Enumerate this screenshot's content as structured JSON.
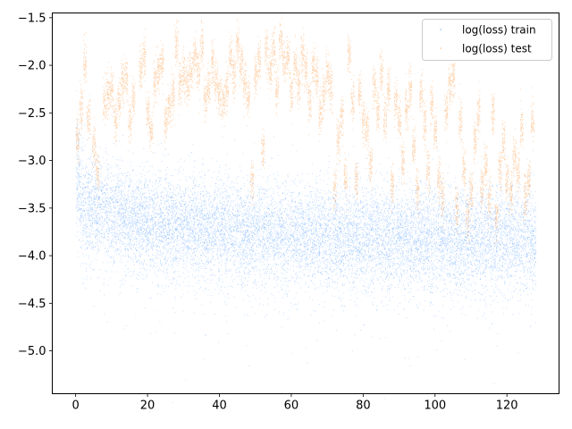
{
  "chart_data": {
    "type": "scatter",
    "title": "",
    "xlabel": "",
    "ylabel": "",
    "xlim": [
      -6.5,
      134.5
    ],
    "ylim": [
      -5.45,
      -1.45
    ],
    "xticks": [
      0,
      20,
      40,
      60,
      80,
      100,
      120
    ],
    "yticks": [
      -5.0,
      -4.5,
      -4.0,
      -3.5,
      -3.0,
      -2.5,
      -2.0,
      -1.5
    ],
    "xtick_labels": [
      "0",
      "20",
      "40",
      "60",
      "80",
      "100",
      "120"
    ],
    "ytick_labels": [
      "−5.0",
      "−4.5",
      "−4.0",
      "−3.5",
      "−3.0",
      "−2.5",
      "−2.0",
      "−1.5"
    ],
    "grid": false,
    "legend_position": "upper-right",
    "series": [
      {
        "name": "log(loss) train",
        "color": "#1f7fff",
        "x_range": [
          0,
          128
        ],
        "trend": [
          {
            "x": 0,
            "y": -3.1
          },
          {
            "x": 2,
            "y": -3.45
          },
          {
            "x": 10,
            "y": -3.55
          },
          {
            "x": 20,
            "y": -3.65
          },
          {
            "x": 40,
            "y": -3.72
          },
          {
            "x": 60,
            "y": -3.78
          },
          {
            "x": 80,
            "y": -3.8
          },
          {
            "x": 100,
            "y": -3.82
          },
          {
            "x": 128,
            "y": -3.83
          }
        ]
      },
      {
        "name": "log(loss) test",
        "color": "#ff7f0e",
        "clusters": [
          {
            "x": 0.5,
            "y": -2.8
          },
          {
            "x": 1.5,
            "y": -2.45
          },
          {
            "x": 2.5,
            "y": -1.97
          },
          {
            "x": 3.5,
            "y": -2.55
          },
          {
            "x": 5,
            "y": -2.85
          },
          {
            "x": 6,
            "y": -3.1
          },
          {
            "x": 8,
            "y": -2.4
          },
          {
            "x": 9,
            "y": -2.3
          },
          {
            "x": 10,
            "y": -2.25
          },
          {
            "x": 11,
            "y": -2.6
          },
          {
            "x": 12,
            "y": -2.35
          },
          {
            "x": 13,
            "y": -2.2
          },
          {
            "x": 14,
            "y": -2.15
          },
          {
            "x": 15,
            "y": -2.6
          },
          {
            "x": 16,
            "y": -2.35
          },
          {
            "x": 18,
            "y": -2.05
          },
          {
            "x": 19,
            "y": -1.95
          },
          {
            "x": 20,
            "y": -2.5
          },
          {
            "x": 21,
            "y": -2.7
          },
          {
            "x": 22,
            "y": -2.2
          },
          {
            "x": 23,
            "y": -2.05
          },
          {
            "x": 24,
            "y": -1.97
          },
          {
            "x": 25,
            "y": -2.6
          },
          {
            "x": 26,
            "y": -2.45
          },
          {
            "x": 27,
            "y": -2.3
          },
          {
            "x": 28,
            "y": -1.77
          },
          {
            "x": 29,
            "y": -2.2
          },
          {
            "x": 30,
            "y": -2.1
          },
          {
            "x": 31,
            "y": -2.2
          },
          {
            "x": 32,
            "y": -2.05
          },
          {
            "x": 33,
            "y": -1.9
          },
          {
            "x": 34,
            "y": -2.05
          },
          {
            "x": 35,
            "y": -1.8
          },
          {
            "x": 36,
            "y": -2.35
          },
          {
            "x": 37,
            "y": -2.25
          },
          {
            "x": 38,
            "y": -1.97
          },
          {
            "x": 39,
            "y": -2.15
          },
          {
            "x": 40,
            "y": -2.3
          },
          {
            "x": 41,
            "y": -2.4
          },
          {
            "x": 42,
            "y": -2.25
          },
          {
            "x": 43,
            "y": -1.9
          },
          {
            "x": 44,
            "y": -2.1
          },
          {
            "x": 45,
            "y": -1.8
          },
          {
            "x": 46,
            "y": -2.0
          },
          {
            "x": 47,
            "y": -2.2
          },
          {
            "x": 48,
            "y": -2.35
          },
          {
            "x": 49,
            "y": -3.2
          },
          {
            "x": 50,
            "y": -2.1
          },
          {
            "x": 51,
            "y": -1.95
          },
          {
            "x": 52,
            "y": -2.9
          },
          {
            "x": 53,
            "y": -1.85
          },
          {
            "x": 54,
            "y": -2.05
          },
          {
            "x": 55,
            "y": -1.85
          },
          {
            "x": 56,
            "y": -2.25
          },
          {
            "x": 57,
            "y": -1.75
          },
          {
            "x": 58,
            "y": -2.0
          },
          {
            "x": 59,
            "y": -1.9
          },
          {
            "x": 60,
            "y": -2.3
          },
          {
            "x": 61,
            "y": -2.0
          },
          {
            "x": 62,
            "y": -2.2
          },
          {
            "x": 63,
            "y": -1.9
          },
          {
            "x": 64,
            "y": -2.05
          },
          {
            "x": 65,
            "y": -2.4
          },
          {
            "x": 66,
            "y": -2.0
          },
          {
            "x": 67,
            "y": -2.1
          },
          {
            "x": 68,
            "y": -2.5
          },
          {
            "x": 69,
            "y": -2.3
          },
          {
            "x": 70,
            "y": -2.1
          },
          {
            "x": 71,
            "y": -2.25
          },
          {
            "x": 72,
            "y": -3.3
          },
          {
            "x": 73,
            "y": -2.8
          },
          {
            "x": 74,
            "y": -2.55
          },
          {
            "x": 75,
            "y": -3.2
          },
          {
            "x": 76,
            "y": -1.9
          },
          {
            "x": 77,
            "y": -2.4
          },
          {
            "x": 78,
            "y": -3.2
          },
          {
            "x": 79,
            "y": -2.3
          },
          {
            "x": 80,
            "y": -2.6
          },
          {
            "x": 81,
            "y": -2.7
          },
          {
            "x": 82,
            "y": -3.05
          },
          {
            "x": 83,
            "y": -2.2
          },
          {
            "x": 84,
            "y": -2.5
          },
          {
            "x": 85,
            "y": -2.1
          },
          {
            "x": 86,
            "y": -2.6
          },
          {
            "x": 87,
            "y": -2.25
          },
          {
            "x": 88,
            "y": -3.25
          },
          {
            "x": 89,
            "y": -2.35
          },
          {
            "x": 90,
            "y": -2.6
          },
          {
            "x": 91,
            "y": -3.0
          },
          {
            "x": 92,
            "y": -2.45
          },
          {
            "x": 93,
            "y": -2.25
          },
          {
            "x": 94,
            "y": -2.85
          },
          {
            "x": 95,
            "y": -3.3
          },
          {
            "x": 96,
            "y": -2.3
          },
          {
            "x": 97,
            "y": -2.6
          },
          {
            "x": 98,
            "y": -3.1
          },
          {
            "x": 99,
            "y": -2.4
          },
          {
            "x": 100,
            "y": -2.7
          },
          {
            "x": 101,
            "y": -3.2
          },
          {
            "x": 102,
            "y": -3.4
          },
          {
            "x": 103,
            "y": -2.5
          },
          {
            "x": 104,
            "y": -2.2
          },
          {
            "x": 105,
            "y": -2.1
          },
          {
            "x": 106,
            "y": -3.5
          },
          {
            "x": 107,
            "y": -2.6
          },
          {
            "x": 108,
            "y": -3.1
          },
          {
            "x": 109,
            "y": -3.6
          },
          {
            "x": 110,
            "y": -3.3
          },
          {
            "x": 111,
            "y": -2.8
          },
          {
            "x": 112,
            "y": -2.5
          },
          {
            "x": 113,
            "y": -3.3
          },
          {
            "x": 114,
            "y": -3.05
          },
          {
            "x": 115,
            "y": -3.4
          },
          {
            "x": 116,
            "y": -2.5
          },
          {
            "x": 117,
            "y": -3.6
          },
          {
            "x": 118,
            "y": -3.1
          },
          {
            "x": 119,
            "y": -2.8
          },
          {
            "x": 120,
            "y": -3.2
          },
          {
            "x": 121,
            "y": -3.35
          },
          {
            "x": 122,
            "y": -2.95
          },
          {
            "x": 123,
            "y": -3.1
          },
          {
            "x": 124,
            "y": -2.65
          },
          {
            "x": 125,
            "y": -3.4
          },
          {
            "x": 126,
            "y": -3.2
          },
          {
            "x": 127,
            "y": -2.6
          }
        ]
      }
    ]
  }
}
